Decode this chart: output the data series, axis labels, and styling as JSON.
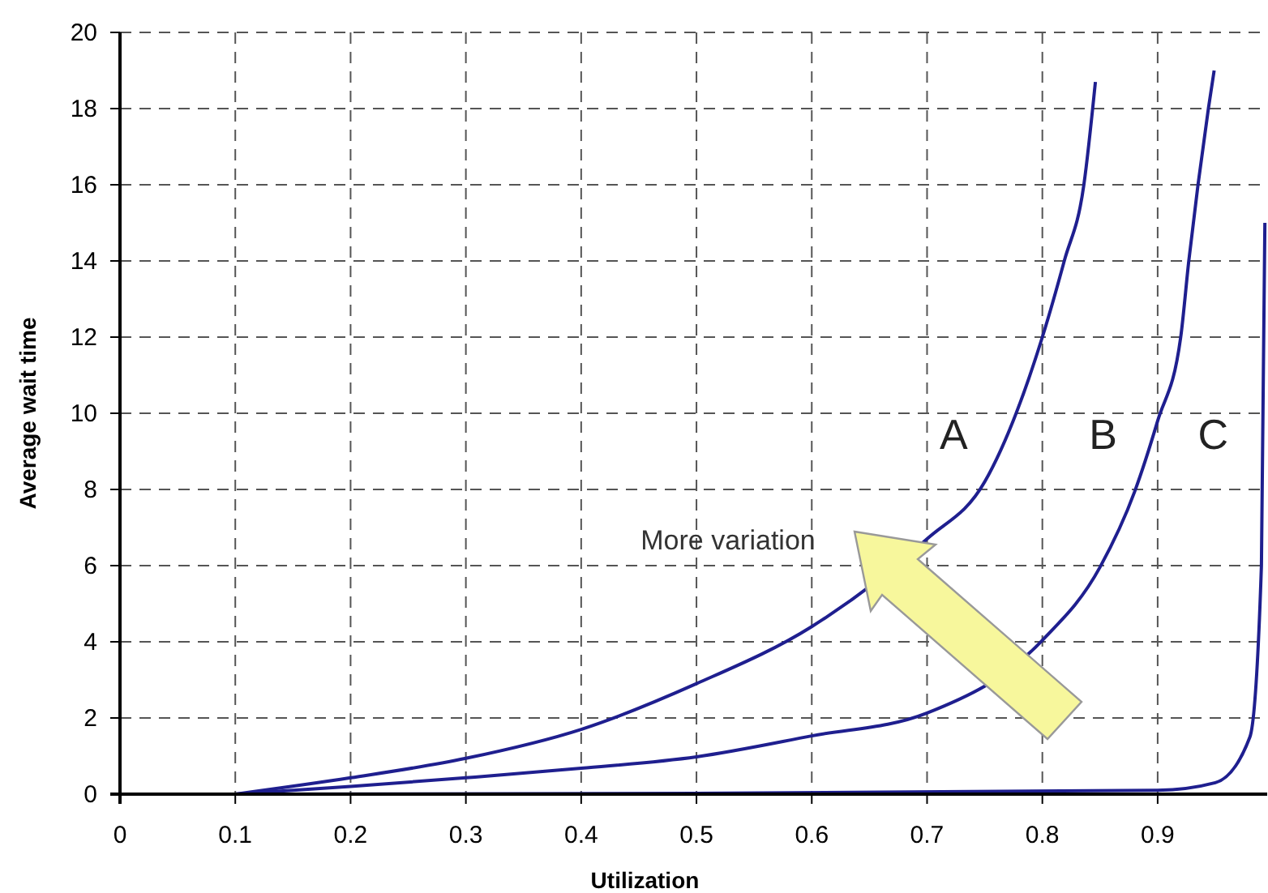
{
  "chart_data": {
    "type": "line",
    "xlabel": "Utilization",
    "ylabel": "Average wait time",
    "xlim": [
      0,
      0.995
    ],
    "xticks": [
      0,
      0.1,
      0.2,
      0.3,
      0.4,
      0.5,
      0.6,
      0.7,
      0.8,
      0.9
    ],
    "ylim": [
      0,
      20
    ],
    "yticks": [
      0,
      2,
      4,
      6,
      8,
      10,
      12,
      14,
      16,
      18,
      20
    ],
    "grid": true,
    "marker": "none",
    "line_style": "solid",
    "series": [
      {
        "name": "A",
        "color": "#1f1f8f",
        "x": [
          0.1,
          0.2,
          0.3,
          0.4,
          0.5,
          0.6,
          0.7,
          0.75,
          0.8,
          0.819,
          0.836,
          0.846
        ],
        "values": [
          0,
          0.43,
          0.94,
          1.7,
          2.9,
          4.4,
          6.7,
          8.2,
          12.0,
          14.0,
          16.0,
          18.7
        ]
      },
      {
        "name": "B",
        "color": "#1f1f8f",
        "x": [
          0.1,
          0.2,
          0.3,
          0.4,
          0.5,
          0.6,
          0.7,
          0.8,
          0.85,
          0.88,
          0.9,
          0.92,
          0.927,
          0.935,
          0.944,
          0.949
        ],
        "values": [
          0,
          0.2,
          0.43,
          0.68,
          0.98,
          1.53,
          2.13,
          4.04,
          5.96,
          7.94,
          9.8,
          12,
          14,
          16,
          18,
          19.0
        ]
      },
      {
        "name": "C",
        "color": "#1f1f8f",
        "x": [
          0.1,
          0.5,
          0.9,
          0.95,
          0.98,
          0.99,
          0.993
        ],
        "values": [
          0,
          0.02,
          0.1,
          0.3,
          1.5,
          6,
          15
        ]
      }
    ],
    "annotations": [
      "More variation"
    ]
  }
}
